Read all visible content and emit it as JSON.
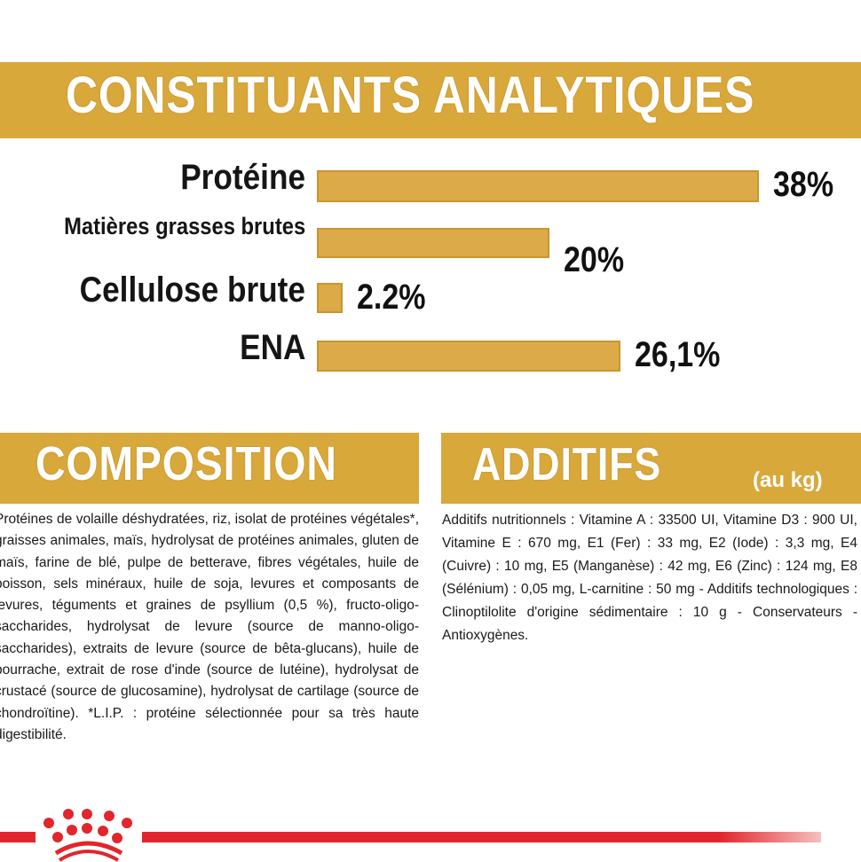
{
  "header": {
    "title": "CONSTITUANTS ANALYTIQUES"
  },
  "chart_data": {
    "type": "bar",
    "orientation": "horizontal",
    "categories": [
      "Protéine",
      "Matières grasses brutes",
      "Cellulose brute",
      "ENA"
    ],
    "values": [
      38,
      20,
      2.2,
      26.1
    ],
    "value_labels": [
      "38%",
      "20%",
      "2.2%",
      "26,1%"
    ],
    "unit": "%",
    "bar_color": "#dcaa48",
    "grid": false
  },
  "composition": {
    "title": "COMPOSITION",
    "text": "Protéines de volaille déshydratées, riz, isolat de protéines végétales*, graisses animales, maïs, hydrolysat de protéines animales, gluten de maïs, farine de blé, pulpe de betterave, fibres végétales, huile de poisson, sels minéraux, huile de soja, levures et composants de levures, téguments et graines de psyllium (0,5 %), fructo-oligo-saccharides, hydrolysat de levure (source de manno-oligo-saccharides), extraits de levure (source de bêta-glucans), huile de bourrache, extrait de rose d'inde (source de lutéine), hydrolysat de crustacé (source de glucosamine), hydrolysat de cartilage (source de chondroïtine). *L.I.P. : protéine sélectionnée pour sa très haute digestibilité."
  },
  "additifs": {
    "title": "ADDITIFS",
    "unit": "(au kg)",
    "text": "Additifs nutritionnels : Vitamine A : 33500 UI, Vitamine D3 : 900 UI, Vitamine E : 670 mg, E1 (Fer) : 33 mg, E2 (Iode) : 3,3 mg, E4 (Cuivre) : 10 mg, E5 (Manganèse) : 42 mg, E6 (Zinc) : 124 mg, E8 (Sélénium) : 0,05 mg, L-carnitine : 50 mg - Additifs technologiques : Clinoptilolite d'origine sédimentaire : 10 g - Conservateurs - Antioxygènes."
  },
  "colors": {
    "accent": "#d9a83a",
    "brand_red": "#e1262c"
  },
  "logo": {
    "icon": "crown-icon"
  }
}
